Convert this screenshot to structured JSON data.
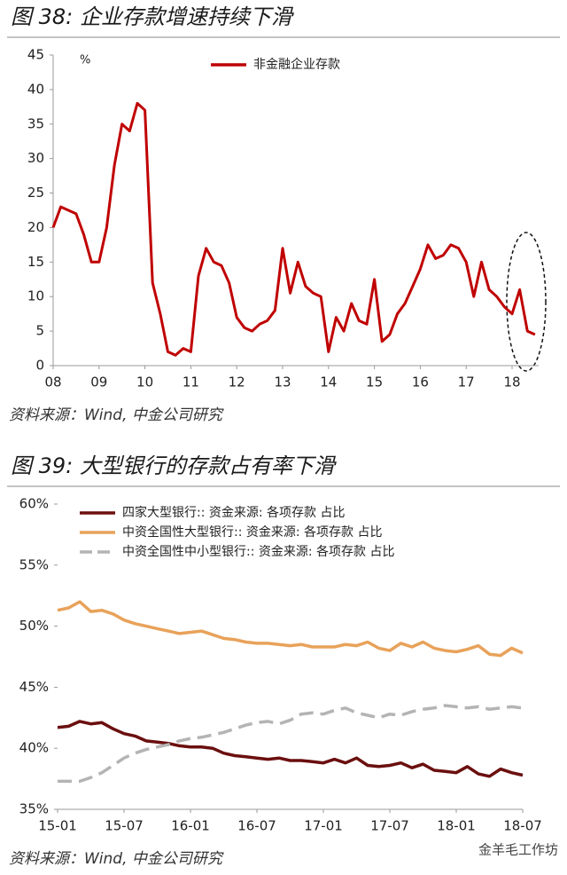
{
  "chart_data": [
    {
      "type": "line",
      "title": "图 38: 企业存款增速持续下滑",
      "ylabel": "%",
      "source": "资料来源：Wind, 中金公司研究",
      "categories": [
        "08",
        null,
        null,
        null,
        null,
        null,
        "09",
        null,
        null,
        null,
        null,
        null,
        "10",
        null,
        null,
        null,
        null,
        null,
        "11",
        null,
        null,
        null,
        null,
        null,
        "12",
        null,
        null,
        null,
        null,
        null,
        "13",
        null,
        null,
        null,
        null,
        null,
        "14",
        null,
        null,
        null,
        null,
        null,
        "15",
        null,
        null,
        null,
        null,
        null,
        "16",
        null,
        null,
        null,
        null,
        null,
        "17",
        null,
        null,
        null,
        null,
        null,
        "18",
        null,
        null,
        null
      ],
      "series": [
        {
          "name": "非金融企业存款",
          "color": "#c00000",
          "line_style": "solid",
          "values": [
            20,
            23,
            22.5,
            22,
            19,
            15,
            15,
            20,
            29,
            35,
            34,
            38,
            37,
            12,
            7.5,
            2,
            1.5,
            2.5,
            2,
            13,
            17,
            15,
            14.5,
            12,
            7,
            5.5,
            5,
            6,
            6.5,
            8,
            17,
            10.5,
            15,
            11.5,
            10.5,
            10,
            2,
            7,
            5,
            9,
            6.5,
            6,
            12.5,
            3.5,
            4.5,
            7.5,
            9,
            11.5,
            14,
            17.5,
            15.5,
            16,
            17.5,
            17,
            15,
            10,
            15,
            11,
            10,
            8.5,
            7.5,
            11,
            5,
            4.5
          ]
        }
      ],
      "ylim": [
        0,
        45
      ],
      "yticks": [
        0,
        5,
        10,
        15,
        20,
        25,
        30,
        35,
        40,
        45
      ],
      "legend": "top"
    },
    {
      "type": "line",
      "title": "图 39: 大型银行的存款占有率下滑",
      "source": "资料来源：Wind, 中金公司研究",
      "categories": [
        "15-01",
        null,
        null,
        null,
        null,
        null,
        "15-07",
        null,
        null,
        null,
        null,
        null,
        "16-01",
        null,
        null,
        null,
        null,
        null,
        "16-07",
        null,
        null,
        null,
        null,
        null,
        "17-01",
        null,
        null,
        null,
        null,
        null,
        "17-07",
        null,
        null,
        null,
        null,
        null,
        "18-01",
        null,
        null,
        null,
        null,
        null,
        "18-07"
      ],
      "series": [
        {
          "name": "四家大型银行:: 资金来源: 各项存款  占比",
          "color": "#6b0f0f",
          "line_style": "solid",
          "values": [
            41.7,
            41.8,
            42.2,
            42.0,
            42.1,
            41.6,
            41.2,
            41.0,
            40.6,
            40.5,
            40.4,
            40.2,
            40.1,
            40.1,
            40.0,
            39.6,
            39.4,
            39.3,
            39.2,
            39.1,
            39.2,
            39.0,
            39.0,
            38.9,
            38.8,
            39.1,
            38.8,
            39.2,
            38.6,
            38.5,
            38.6,
            38.8,
            38.4,
            38.7,
            38.2,
            38.1,
            38.0,
            38.5,
            37.9,
            37.7,
            38.3,
            38.0,
            37.8
          ]
        },
        {
          "name": "中资全国性大型银行:: 资金来源: 各项存款  占比",
          "color": "#e8a25a",
          "line_style": "solid",
          "values": [
            51.3,
            51.5,
            52.0,
            51.2,
            51.3,
            51.0,
            50.5,
            50.2,
            50.0,
            49.8,
            49.6,
            49.4,
            49.5,
            49.6,
            49.3,
            49.0,
            48.9,
            48.7,
            48.6,
            48.6,
            48.5,
            48.4,
            48.5,
            48.3,
            48.3,
            48.3,
            48.5,
            48.4,
            48.7,
            48.2,
            48.0,
            48.6,
            48.3,
            48.7,
            48.2,
            48.0,
            47.9,
            48.1,
            48.4,
            47.7,
            47.6,
            48.2,
            47.8
          ]
        },
        {
          "name": "中资全国性中小型银行:: 资金来源: 各项存款  占比",
          "color": "#b4b4b4",
          "line_style": "dashed",
          "values": [
            37.3,
            37.3,
            37.3,
            37.6,
            38.0,
            38.6,
            39.2,
            39.6,
            39.9,
            40.1,
            40.3,
            40.6,
            40.8,
            40.9,
            41.1,
            41.3,
            41.6,
            41.9,
            42.1,
            42.2,
            42.0,
            42.3,
            42.8,
            42.9,
            42.8,
            43.1,
            43.3,
            42.9,
            42.7,
            42.5,
            42.8,
            42.7,
            43.0,
            43.2,
            43.3,
            43.5,
            43.4,
            43.3,
            43.4,
            43.2,
            43.3,
            43.4,
            43.3
          ]
        }
      ],
      "ylim": [
        35,
        60
      ],
      "yticks": [
        {
          "value": 35,
          "label": "35%"
        },
        {
          "value": 40,
          "label": "40%"
        },
        {
          "value": 45,
          "label": "45%"
        },
        {
          "value": 50,
          "label": "50%"
        },
        {
          "value": 55,
          "label": "55%"
        },
        {
          "value": 60,
          "label": "60%"
        }
      ],
      "legend": "top-left"
    }
  ],
  "watermark": "金羊毛工作坊"
}
